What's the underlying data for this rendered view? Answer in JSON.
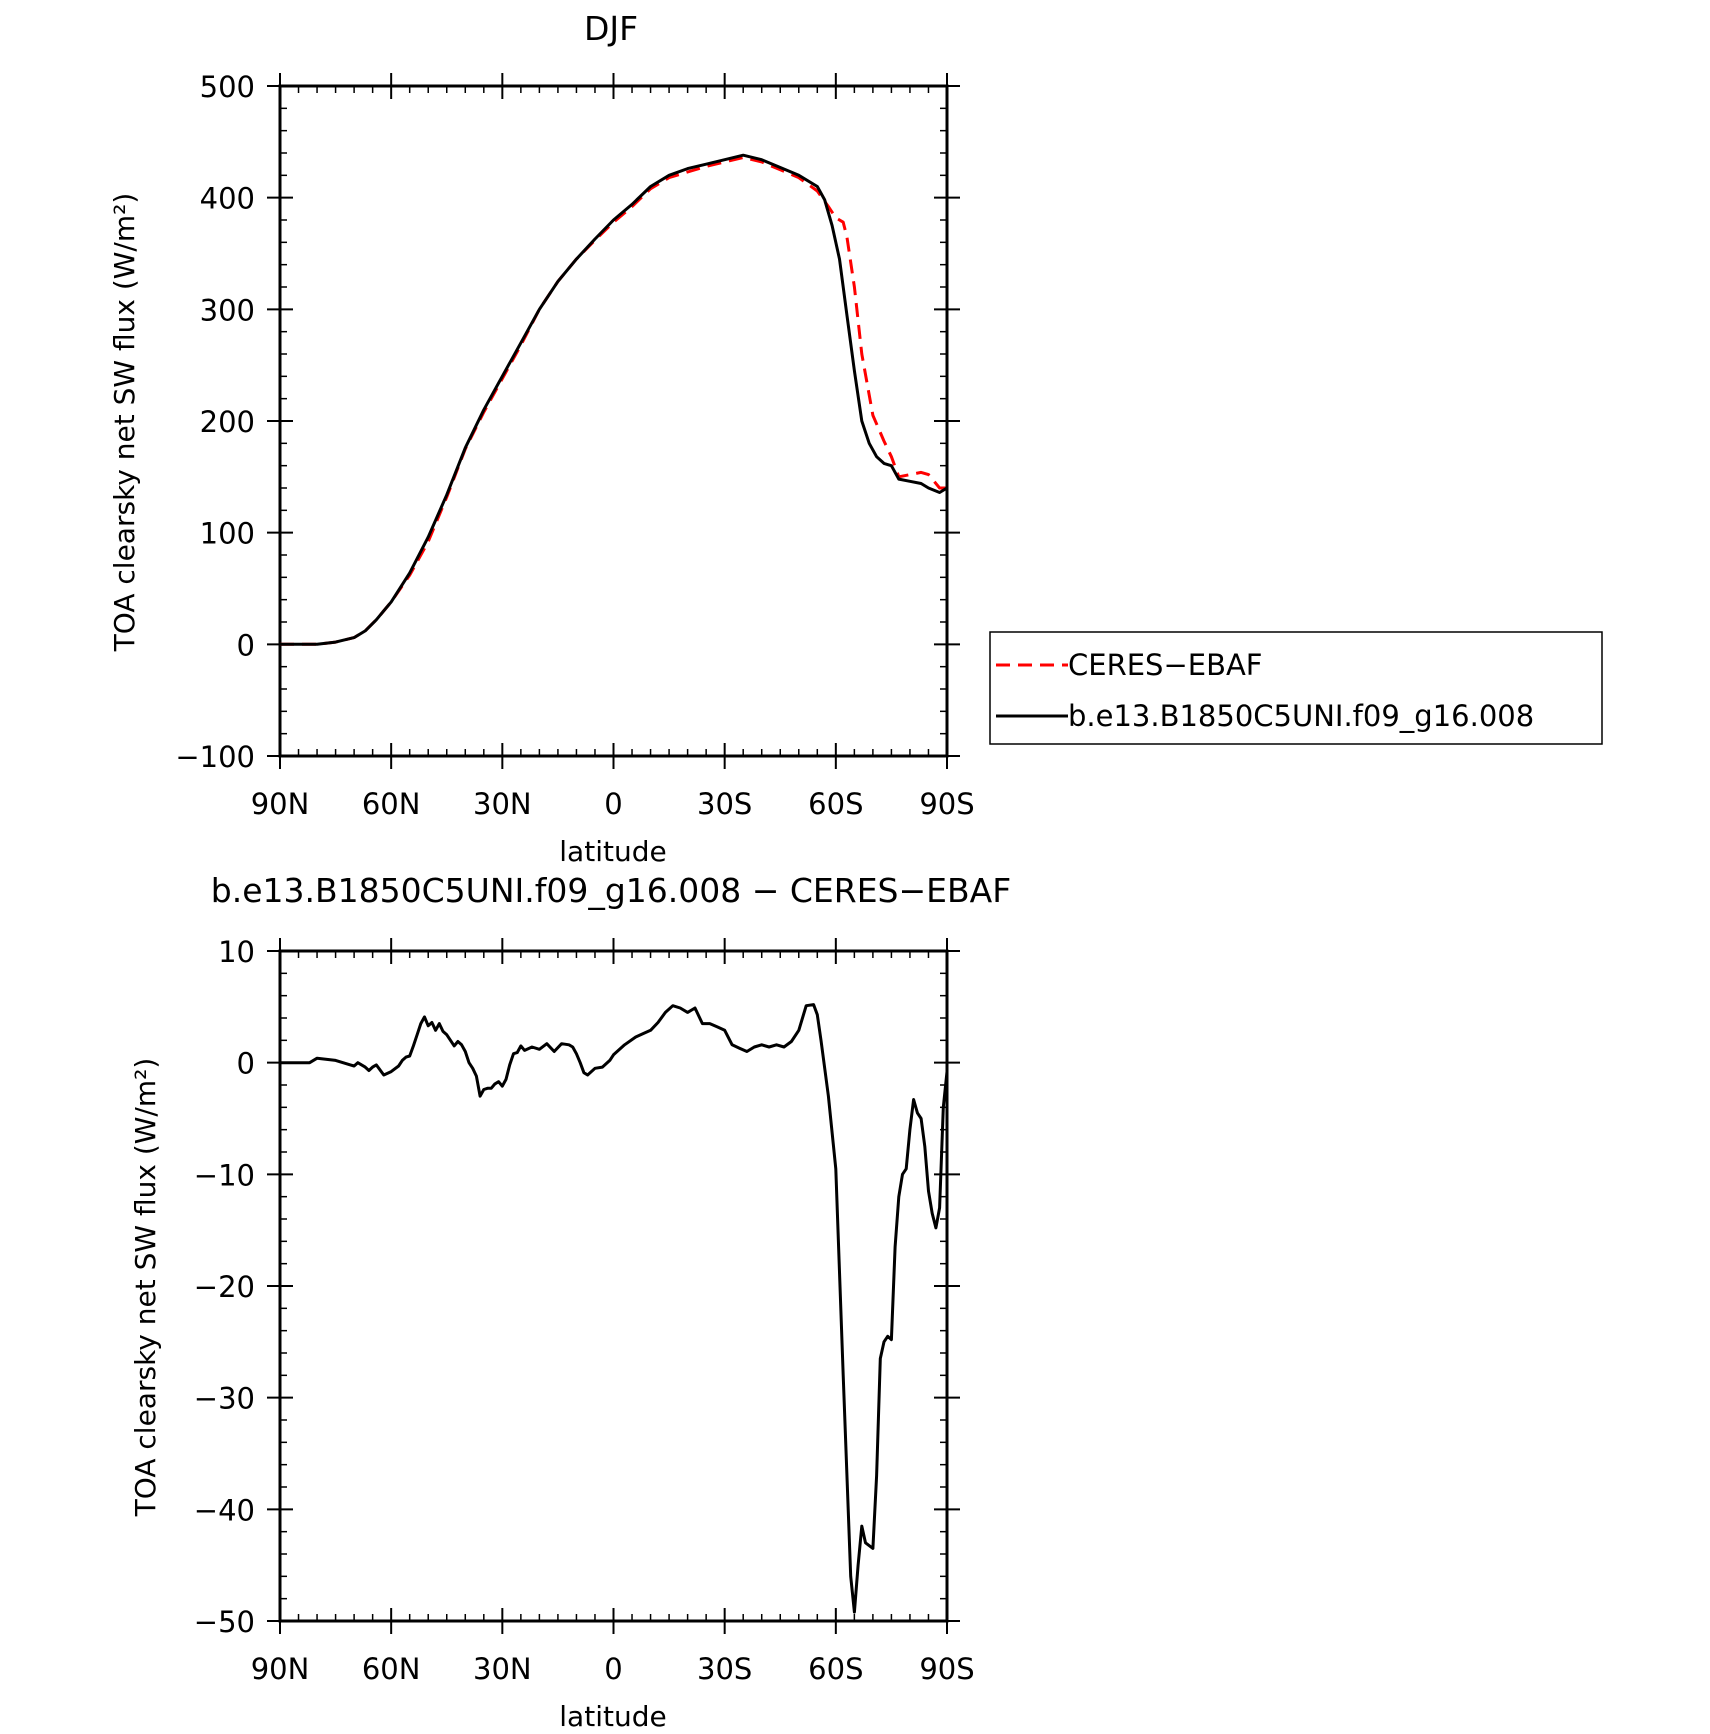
{
  "chart_data": [
    {
      "type": "line",
      "title": "DJF",
      "xlabel": "latitude",
      "ylabel": "TOA clearsky net SW flux (W/m²)",
      "xlim": [
        90,
        -90
      ],
      "ylim": [
        -100,
        500
      ],
      "x_ticks": [
        90,
        60,
        30,
        0,
        -30,
        -60,
        -90
      ],
      "x_tick_labels": [
        "90N",
        "60N",
        "30N",
        "0",
        "30S",
        "60S",
        "90S"
      ],
      "y_ticks": [
        -100,
        0,
        100,
        200,
        300,
        400,
        500
      ],
      "y_tick_labels": [
        "−100",
        "0",
        "100",
        "200",
        "300",
        "400",
        "500"
      ],
      "legend": {
        "placement": "right, outside plot"
      },
      "series": [
        {
          "name": "CERES−EBAF",
          "color": "#ff0000",
          "style": "dashed",
          "x": [
            90,
            85,
            80,
            75,
            70,
            67,
            64,
            60,
            55,
            50,
            45,
            40,
            35,
            30,
            25,
            20,
            15,
            10,
            5,
            0,
            -5,
            -10,
            -15,
            -20,
            -25,
            -30,
            -35,
            -40,
            -45,
            -50,
            -55,
            -58,
            -60,
            -62,
            -63,
            -65,
            -67,
            -70,
            -73,
            -75,
            -77,
            -80,
            -83,
            -85,
            -88,
            -90
          ],
          "y": [
            0,
            0,
            0,
            2,
            6,
            12,
            22,
            38,
            62,
            92,
            132,
            175,
            208,
            238,
            268,
            300,
            325,
            345,
            362,
            378,
            392,
            408,
            418,
            423,
            428,
            432,
            436,
            432,
            425,
            418,
            406,
            392,
            382,
            378,
            365,
            320,
            260,
            205,
            182,
            168,
            150,
            152,
            154,
            152,
            140,
            140
          ]
        },
        {
          "name": "b.e13.B1850C5UNI.f09_g16.008",
          "color": "#000000",
          "style": "solid",
          "x": [
            90,
            85,
            80,
            75,
            70,
            67,
            64,
            60,
            55,
            50,
            45,
            40,
            35,
            30,
            25,
            20,
            15,
            10,
            5,
            0,
            -5,
            -10,
            -15,
            -20,
            -25,
            -30,
            -35,
            -40,
            -45,
            -50,
            -55,
            -57,
            -59,
            -61,
            -63,
            -65,
            -67,
            -69,
            -71,
            -73,
            -75,
            -77,
            -80,
            -83,
            -85,
            -88,
            -90
          ],
          "y": [
            0,
            0,
            0,
            2,
            6,
            12,
            22,
            38,
            64,
            96,
            134,
            176,
            210,
            240,
            270,
            300,
            325,
            345,
            363,
            380,
            394,
            410,
            420,
            426,
            430,
            434,
            438,
            434,
            427,
            420,
            410,
            398,
            375,
            345,
            295,
            245,
            200,
            180,
            168,
            162,
            160,
            148,
            146,
            144,
            140,
            136,
            140
          ]
        }
      ]
    },
    {
      "type": "line",
      "title": "b.e13.B1850C5UNI.f09_g16.008 − CERES−EBAF",
      "xlabel": "latitude",
      "ylabel": "TOA clearsky net SW flux (W/m²)",
      "xlim": [
        90,
        -90
      ],
      "ylim": [
        -50,
        10
      ],
      "x_ticks": [
        90,
        60,
        30,
        0,
        -30,
        -60,
        -90
      ],
      "x_tick_labels": [
        "90N",
        "60N",
        "30N",
        "0",
        "30S",
        "60S",
        "90S"
      ],
      "y_ticks": [
        -50,
        -40,
        -30,
        -20,
        -10,
        0,
        10
      ],
      "y_tick_labels": [
        "−50",
        "−40",
        "−30",
        "−20",
        "−10",
        "0",
        "10"
      ],
      "series": [
        {
          "color": "#000000",
          "style": "solid",
          "x": [
            90,
            82,
            80,
            75,
            71,
            70,
            69,
            67,
            66,
            65,
            64,
            62,
            60,
            58,
            57,
            56,
            55,
            54,
            53,
            52,
            51,
            50,
            49,
            48,
            47,
            46,
            45,
            43,
            42,
            41,
            40,
            39,
            38,
            37,
            36,
            35,
            34,
            33,
            32,
            31,
            30,
            29,
            28,
            27,
            26,
            25,
            24,
            22,
            20,
            18,
            16,
            14,
            12,
            11,
            10,
            9,
            8,
            7,
            5,
            3,
            1,
            0,
            -3,
            -6,
            -8,
            -10,
            -12,
            -14,
            -16,
            -18,
            -20,
            -22,
            -24,
            -26,
            -28,
            -30,
            -32,
            -34,
            -36,
            -38,
            -40,
            -42,
            -44,
            -46,
            -48,
            -50,
            -52,
            -54,
            -55,
            -56,
            -58,
            -60,
            -62,
            -64,
            -65,
            -66,
            -67,
            -68,
            -70,
            -71,
            -72,
            -73,
            -74,
            -75,
            -76,
            -77,
            -78,
            -79,
            -80,
            -81,
            -82,
            -83,
            -84,
            -85,
            -86,
            -87,
            -88,
            -89,
            -90
          ],
          "y": [
            0,
            0,
            0.4,
            0.2,
            -0.2,
            -0.3,
            0,
            -0.4,
            -0.7,
            -0.4,
            -0.2,
            -1.1,
            -0.8,
            -0.3,
            0.2,
            0.5,
            0.6,
            1.5,
            2.5,
            3.5,
            4.1,
            3.3,
            3.6,
            2.9,
            3.5,
            2.8,
            2.5,
            1.5,
            1.9,
            1.6,
            1.0,
            0,
            -0.5,
            -1.2,
            -3.0,
            -2.4,
            -2.3,
            -2.3,
            -1.9,
            -1.7,
            -2.1,
            -1.5,
            -0.2,
            0.8,
            0.9,
            1.5,
            1.1,
            1.4,
            1.2,
            1.7,
            1.0,
            1.7,
            1.6,
            1.4,
            0.8,
            0,
            -0.9,
            -1.1,
            -0.5,
            -0.4,
            0.2,
            0.7,
            1.6,
            2.3,
            2.6,
            2.9,
            3.6,
            4.5,
            5.1,
            4.9,
            4.5,
            4.9,
            3.5,
            3.5,
            3.2,
            2.9,
            1.6,
            1.3,
            1.0,
            1.4,
            1.6,
            1.4,
            1.6,
            1.4,
            1.9,
            2.9,
            5.1,
            5.2,
            4.3,
            2.0,
            -3.0,
            -9.5,
            -28.0,
            -46.0,
            -49.2,
            -45.0,
            -41.5,
            -43.0,
            -43.5,
            -37.0,
            -26.5,
            -25.0,
            -24.5,
            -24.8,
            -16.5,
            -12.0,
            -10.0,
            -9.5,
            -6.0,
            -3.3,
            -4.5,
            -5.0,
            -7.5,
            -11.5,
            -13.5,
            -14.8,
            -13.0,
            -4.0,
            -0.8
          ]
        }
      ]
    }
  ]
}
